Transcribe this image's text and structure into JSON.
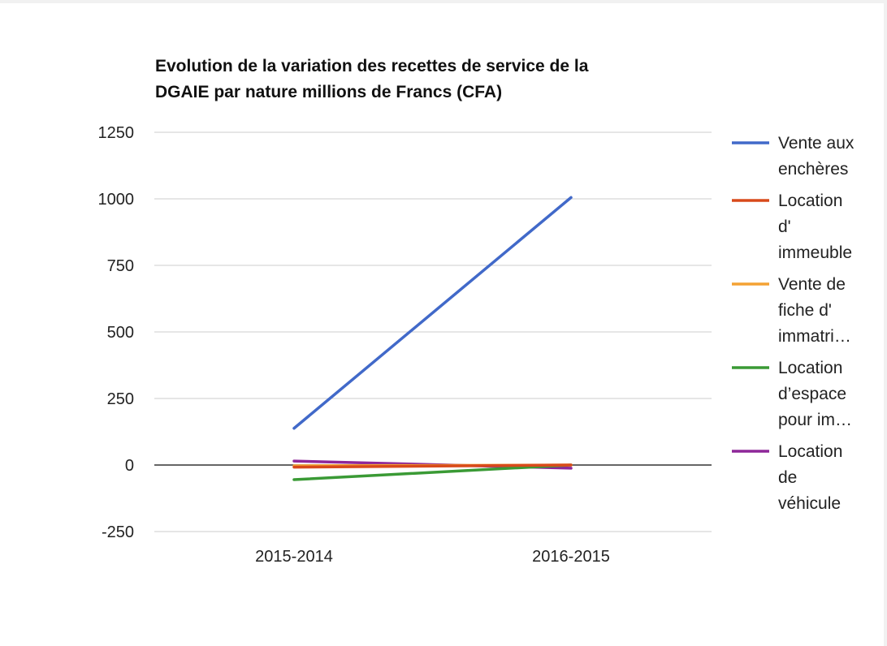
{
  "chart_data": {
    "type": "line",
    "title_lines": [
      "Evolution de la variation des recettes de service de la",
      "DGAIE par nature millions de Francs (CFA)"
    ],
    "categories": [
      "2015-2014",
      "2016-2015"
    ],
    "ylim": [
      -250,
      1250
    ],
    "yticks": [
      1250,
      1000,
      750,
      500,
      250,
      0,
      -250
    ],
    "grid": true,
    "legend_position": "right",
    "series": [
      {
        "name": "Vente aux enchères",
        "legend_lines": [
          "Vente aux",
          "enchères"
        ],
        "color": "#4169c9",
        "values": [
          138,
          1005
        ]
      },
      {
        "name": "Location d' immeuble",
        "legend_lines": [
          "Location",
          "d'",
          "immeuble"
        ],
        "color": "#d84a1b",
        "values": [
          -8,
          0
        ]
      },
      {
        "name": "Vente de fiche d' immatri…",
        "legend_lines": [
          "Vente de",
          "fiche d'",
          "immatri…"
        ],
        "color": "#f4a233",
        "values": [
          -3,
          0
        ]
      },
      {
        "name": "Location d’espace pour im…",
        "legend_lines": [
          "Location",
          "d’espace",
          "pour im…"
        ],
        "color": "#3a9a35",
        "values": [
          -55,
          0
        ]
      },
      {
        "name": "Location de véhicule",
        "legend_lines": [
          "Location",
          "de",
          "véhicule"
        ],
        "color": "#8e2799",
        "values": [
          15,
          -12
        ]
      }
    ]
  }
}
